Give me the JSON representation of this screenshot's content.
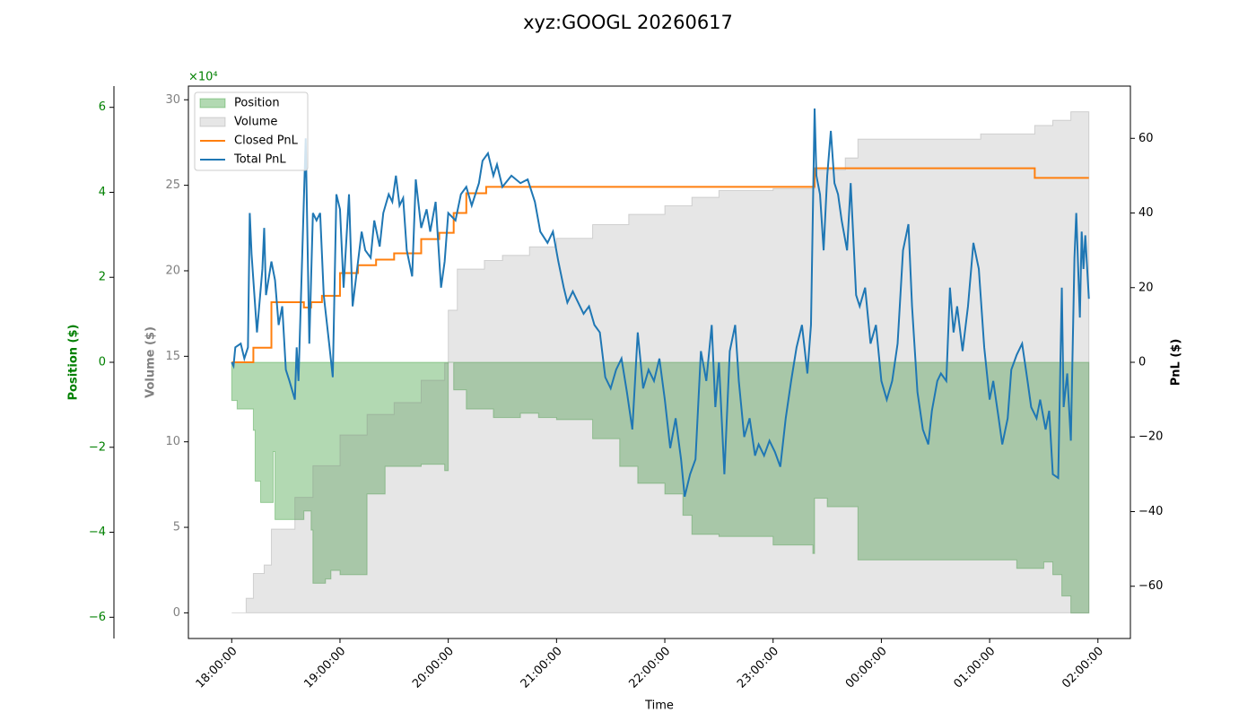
{
  "chart_data": {
    "type": "line",
    "title": "xyz:GOOGL 20260617",
    "x_label": "Time",
    "xlim": [
      "17:36",
      "02:18"
    ],
    "xticks": [
      {
        "value": "18:00",
        "label": "18:00:00"
      },
      {
        "value": "19:00",
        "label": "19:00:00"
      },
      {
        "value": "20:00",
        "label": "20:00:00"
      },
      {
        "value": "21:00",
        "label": "21:00:00"
      },
      {
        "value": "22:00",
        "label": "22:00:00"
      },
      {
        "value": "23:00",
        "label": "23:00:00"
      },
      {
        "value": "00:00",
        "label": "00:00:00"
      },
      {
        "value": "01:00",
        "label": "01:00:00"
      },
      {
        "value": "02:00",
        "label": "02:00:00"
      }
    ],
    "legend": "upper left",
    "axes": {
      "position": {
        "label": "Position ($)",
        "color": "#008000",
        "offset_label": "×10⁴",
        "ylim": [
          -6.5,
          6.5
        ],
        "yticks": [
          {
            "value": -6,
            "label": "−6"
          },
          {
            "value": -4,
            "label": "−4"
          },
          {
            "value": -2,
            "label": "−2"
          },
          0,
          2,
          4,
          6
        ]
      },
      "volume": {
        "label": "Volume ($)",
        "color": "#808080",
        "ylim": [
          -1.5,
          30.8
        ],
        "yticks": [
          0,
          5,
          10,
          15,
          20,
          25,
          30
        ]
      },
      "pnl": {
        "label": "PnL ($)",
        "color": "#000000",
        "ylim": [
          -74,
          74
        ],
        "yticks": [
          {
            "value": -60,
            "label": "−60"
          },
          {
            "value": -40,
            "label": "−40"
          },
          {
            "value": -20,
            "label": "−20"
          },
          0,
          20,
          40,
          60
        ]
      }
    },
    "series": [
      {
        "name": "Position",
        "type": "area",
        "axis": "position",
        "color": "#008000",
        "step": true,
        "x": [
          "18:00",
          "18:03",
          "18:12",
          "18:13",
          "18:16",
          "18:23",
          "18:24",
          "18:40",
          "18:44",
          "18:45",
          "18:52",
          "18:55",
          "19:00",
          "19:15",
          "19:25",
          "19:45",
          "19:58",
          "20:00",
          "20:03",
          "20:10",
          "20:25",
          "20:40",
          "20:50",
          "21:00",
          "21:20",
          "21:35",
          "21:45",
          "22:00",
          "22:10",
          "22:15",
          "22:30",
          "23:00",
          "23:22",
          "23:23",
          "23:30",
          "23:47",
          "00:30",
          "01:15",
          "01:30",
          "01:35",
          "01:40",
          "01:45",
          "01:55"
        ],
        "values": [
          -0.9,
          -1.1,
          -1.6,
          -2.8,
          -3.3,
          -2.1,
          -3.7,
          -3.5,
          -3.95,
          -5.2,
          -5.1,
          -4.9,
          -5.0,
          -3.1,
          -2.45,
          -2.4,
          -2.55,
          0,
          -0.65,
          -1.1,
          -1.3,
          -1.2,
          -1.3,
          -1.35,
          -1.8,
          -2.45,
          -2.85,
          -3.1,
          -3.6,
          -4.05,
          -4.1,
          -4.3,
          -4.5,
          -3.2,
          -3.4,
          -4.65,
          -4.65,
          -4.85,
          -4.7,
          -5.0,
          -5.5,
          -5.9,
          -5.9
        ]
      },
      {
        "name": "Volume",
        "type": "area",
        "axis": "volume",
        "color": "#808080",
        "step": true,
        "x": [
          "18:00",
          "18:08",
          "18:12",
          "18:18",
          "18:22",
          "18:35",
          "18:45",
          "19:00",
          "19:15",
          "19:30",
          "19:45",
          "19:58",
          "20:00",
          "20:05",
          "20:20",
          "20:30",
          "20:45",
          "21:00",
          "21:20",
          "21:40",
          "22:00",
          "22:15",
          "22:30",
          "23:00",
          "23:23",
          "23:40",
          "23:47",
          "00:55",
          "01:25",
          "01:35",
          "01:45",
          "01:55"
        ],
        "values": [
          0,
          0.85,
          2.3,
          2.8,
          4.9,
          6.75,
          8.6,
          10.4,
          11.6,
          12.3,
          13.6,
          14.6,
          17.7,
          20.1,
          20.6,
          20.9,
          21.4,
          21.9,
          22.7,
          23.3,
          23.8,
          24.3,
          24.7,
          24.8,
          25.9,
          26.6,
          27.7,
          28.0,
          28.5,
          28.8,
          29.3,
          29.3
        ]
      },
      {
        "name": "Closed PnL",
        "type": "step",
        "axis": "pnl",
        "color": "#ff7f0e",
        "x": [
          "18:00",
          "18:12",
          "18:22",
          "18:40",
          "18:44",
          "18:50",
          "19:00",
          "19:10",
          "19:20",
          "19:30",
          "19:45",
          "19:55",
          "20:03",
          "20:10",
          "20:21",
          "23:23",
          "01:25",
          "01:55"
        ],
        "values": [
          0,
          3.9,
          16.1,
          14.7,
          16.1,
          17.8,
          23.9,
          26,
          27.5,
          29.2,
          33,
          34.7,
          40,
          45.3,
          47,
          52,
          49.4,
          49.4
        ]
      },
      {
        "name": "Total PnL",
        "axis": "pnl",
        "color": "#1f77b4",
        "x": [
          "18:00",
          "18:01",
          "18:02",
          "18:05",
          "18:07",
          "18:09",
          "18:10",
          "18:11",
          "18:14",
          "18:17",
          "18:18",
          "18:19",
          "18:22",
          "18:24",
          "18:26",
          "18:28",
          "18:30",
          "18:32",
          "18:35",
          "18:36",
          "18:37",
          "18:41",
          "18:43",
          "18:45",
          "18:47",
          "18:49",
          "18:51",
          "18:54",
          "18:56",
          "18:58",
          "19:00",
          "19:02",
          "19:05",
          "19:07",
          "19:09",
          "19:12",
          "19:14",
          "19:17",
          "19:19",
          "19:22",
          "19:24",
          "19:27",
          "19:29",
          "19:31",
          "19:33",
          "19:35",
          "19:37",
          "19:40",
          "19:42",
          "19:45",
          "19:48",
          "19:50",
          "19:53",
          "19:56",
          "19:58",
          "20:00",
          "20:04",
          "20:07",
          "20:10",
          "20:13",
          "20:17",
          "20:19",
          "20:22",
          "20:25",
          "20:27",
          "20:30",
          "20:35",
          "20:40",
          "20:44",
          "20:48",
          "20:51",
          "20:55",
          "20:58",
          "21:01",
          "21:04",
          "21:06",
          "21:09",
          "21:12",
          "21:15",
          "21:18",
          "21:21",
          "21:24",
          "21:27",
          "21:30",
          "21:33",
          "21:36",
          "21:39",
          "21:42",
          "21:45",
          "21:48",
          "21:51",
          "21:54",
          "21:57",
          "22:00",
          "22:03",
          "22:06",
          "22:09",
          "22:11",
          "22:14",
          "22:17",
          "22:20",
          "22:23",
          "22:26",
          "22:28",
          "22:30",
          "22:33",
          "22:36",
          "22:39",
          "22:41",
          "22:44",
          "22:47",
          "22:50",
          "22:52",
          "22:55",
          "22:58",
          "23:01",
          "23:04",
          "23:07",
          "23:10",
          "23:13",
          "23:16",
          "23:19",
          "23:21",
          "23:23",
          "23:24",
          "23:26",
          "23:28",
          "23:30",
          "23:32",
          "23:34",
          "23:36",
          "23:38",
          "23:41",
          "23:43",
          "23:46",
          "23:48",
          "23:51",
          "23:54",
          "23:57",
          "00:00",
          "00:03",
          "00:06",
          "00:09",
          "00:12",
          "00:15",
          "00:17",
          "00:20",
          "00:23",
          "00:26",
          "00:28",
          "00:31",
          "00:33",
          "00:36",
          "00:38",
          "00:40",
          "00:42",
          "00:45",
          "00:48",
          "00:51",
          "00:54",
          "00:57",
          "01:00",
          "01:02",
          "01:05",
          "01:07",
          "01:10",
          "01:12",
          "01:15",
          "01:18",
          "01:21",
          "01:23",
          "01:26",
          "01:28",
          "01:31",
          "01:33",
          "01:35",
          "01:38",
          "01:40",
          "01:41",
          "01:43",
          "01:45",
          "01:47",
          "01:48",
          "01:50",
          "01:51",
          "01:52",
          "01:53",
          "01:55"
        ],
        "values": [
          0,
          -1,
          4,
          5,
          1,
          4,
          40,
          29,
          8,
          25,
          36,
          18,
          27,
          22,
          10,
          15,
          -2,
          -5,
          -10,
          4,
          -5,
          60,
          5,
          40,
          38,
          40,
          18,
          5,
          -4,
          45,
          41,
          20,
          45,
          15,
          23,
          35,
          30,
          28,
          38,
          31,
          40,
          45,
          43,
          50,
          42,
          44,
          30,
          23,
          49,
          36,
          41,
          35,
          43,
          20,
          27,
          40,
          38,
          45,
          47,
          42,
          48,
          54,
          56,
          50,
          53,
          47,
          50,
          48,
          49,
          43,
          35,
          32,
          35,
          27,
          20,
          16,
          19,
          16,
          13,
          15,
          10,
          8,
          -4,
          -7,
          -2,
          1,
          -8,
          -18,
          8,
          -7,
          -2,
          -5,
          1,
          -10,
          -23,
          -15,
          -26,
          -36,
          -30,
          -26,
          3,
          -5,
          10,
          -12,
          0,
          -30,
          3,
          10,
          -5,
          -20,
          -15,
          -25,
          -22,
          -25,
          -21,
          -24,
          -28,
          -15,
          -5,
          4,
          10,
          -3,
          10,
          68,
          50,
          45,
          30,
          50,
          62,
          48,
          45,
          38,
          30,
          48,
          18,
          15,
          20,
          5,
          10,
          -5,
          -10,
          -5,
          5,
          30,
          37,
          15,
          -8,
          -18,
          -22,
          -13,
          -5,
          -3,
          -5,
          20,
          8,
          15,
          3,
          15,
          32,
          25,
          4,
          -10,
          -5,
          -15,
          -22,
          -15,
          -2,
          2,
          5,
          -5,
          -12,
          -15,
          -10,
          -18,
          -13,
          -30,
          -31,
          20,
          -12,
          -3,
          -21,
          28,
          40,
          12,
          35,
          25,
          34,
          17
        ]
      }
    ]
  }
}
